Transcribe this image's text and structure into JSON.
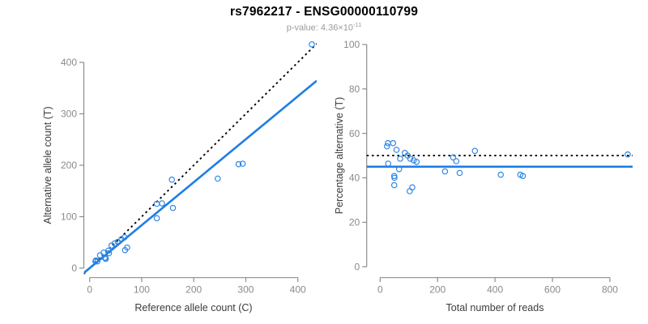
{
  "header": {
    "title": "rs7962217 - ENSG00000110799",
    "subtitle_prefix": "p-value: 4.36×10",
    "subtitle_exponent": "-11"
  },
  "colors": {
    "title": "#000000",
    "subtitle": "#9b9b9b",
    "axis_title": "#3c3c3c",
    "axis": "#8c8c8c",
    "tick_label": "#8a8a8a",
    "point": "#2a84e2",
    "fit_line": "#1d7ee6",
    "reference_line": "#000000",
    "background": "#ffffff"
  },
  "chart_data": [
    {
      "type": "scatter",
      "panel": "allele-counts",
      "xlabel": "Reference allele count (C)",
      "ylabel": "Alternative allele count (T)",
      "xlim": [
        0,
        430
      ],
      "ylim": [
        0,
        435
      ],
      "xticks": [
        0,
        100,
        200,
        300,
        400
      ],
      "yticks": [
        0,
        100,
        200,
        300,
        400
      ],
      "points": [
        [
          11,
          13
        ],
        [
          12,
          15
        ],
        [
          20,
          25
        ],
        [
          15,
          13
        ],
        [
          27,
          30
        ],
        [
          42,
          44
        ],
        [
          48,
          48
        ],
        [
          36,
          34
        ],
        [
          54,
          51
        ],
        [
          61,
          56
        ],
        [
          67,
          60
        ],
        [
          37,
          29
        ],
        [
          29,
          20
        ],
        [
          30,
          20
        ],
        [
          31,
          18
        ],
        [
          68,
          35
        ],
        [
          72,
          40
        ],
        [
          129,
          97
        ],
        [
          129,
          125
        ],
        [
          139,
          126
        ],
        [
          160,
          117
        ],
        [
          158,
          172
        ],
        [
          246,
          174
        ],
        [
          286,
          202
        ],
        [
          294,
          203
        ],
        [
          427,
          435
        ]
      ],
      "lines": [
        {
          "name": "identity-line",
          "slope": 1,
          "intercept": 0,
          "style": "dotted",
          "color": "reference_line"
        },
        {
          "name": "fit-line",
          "slope": 0.835,
          "intercept": 0,
          "style": "solid",
          "color": "fit_line"
        }
      ]
    },
    {
      "type": "scatter",
      "panel": "percentage-vs-reads",
      "xlabel": "Total number of reads",
      "ylabel": "Percentage alternative (T)",
      "xlim": [
        0,
        862
      ],
      "ylim": [
        0,
        100
      ],
      "xticks": [
        0,
        200,
        400,
        600,
        800
      ],
      "yticks": [
        0,
        20,
        40,
        60,
        80,
        100
      ],
      "points": [
        [
          24,
          54.2
        ],
        [
          27,
          55.6
        ],
        [
          45,
          55.6
        ],
        [
          28,
          46.4
        ],
        [
          57,
          52.6
        ],
        [
          86,
          51.2
        ],
        [
          96,
          50
        ],
        [
          70,
          48.6
        ],
        [
          105,
          48.6
        ],
        [
          117,
          47.9
        ],
        [
          127,
          47.2
        ],
        [
          66,
          43.9
        ],
        [
          49,
          40.8
        ],
        [
          50,
          40
        ],
        [
          49,
          36.7
        ],
        [
          103,
          34
        ],
        [
          112,
          35.7
        ],
        [
          226,
          42.9
        ],
        [
          254,
          49.2
        ],
        [
          265,
          47.5
        ],
        [
          277,
          42.2
        ],
        [
          330,
          52.1
        ],
        [
          420,
          41.4
        ],
        [
          488,
          41.4
        ],
        [
          497,
          40.8
        ],
        [
          862,
          50.5
        ]
      ],
      "lines": [
        {
          "name": "expected-50pct-line",
          "y": 50,
          "style": "dotted",
          "color": "reference_line"
        },
        {
          "name": "fit-line",
          "y": 45,
          "style": "solid",
          "color": "fit_line"
        }
      ]
    }
  ]
}
